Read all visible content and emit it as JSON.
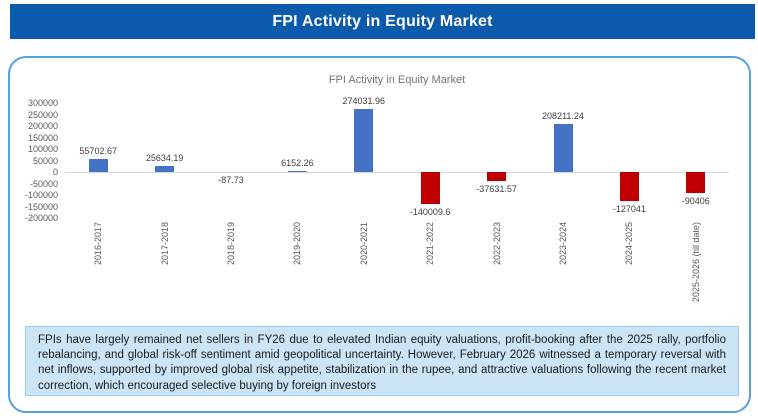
{
  "header": {
    "title": "FPI Activity in Equity Market"
  },
  "chart_data": {
    "type": "bar",
    "title": "FPI Activity in Equity Market",
    "categories": [
      "2016-2017",
      "2017-2018",
      "2018-2019",
      "2019-2020",
      "2020-2021",
      "2021-2022",
      "2022-2023",
      "2023-2024",
      "2024-2025",
      "2025-2026 (till date)"
    ],
    "values": [
      55702.67,
      25634.19,
      -87.73,
      6152.26,
      274031.96,
      -140009.6,
      -37631.57,
      208211.24,
      -127041,
      -90406
    ],
    "labels": [
      "55702.67",
      "25634.19",
      "-87.73",
      "6152.26",
      "274031.96",
      "-140009.6",
      "-37631.57",
      "208211.24",
      "-127041",
      "-90406"
    ],
    "ylim": [
      -200000,
      300000
    ],
    "yticks": [
      300000,
      250000,
      200000,
      150000,
      100000,
      50000,
      0,
      -50000,
      -100000,
      -150000,
      -200000
    ],
    "xlabel": "",
    "ylabel": "",
    "grid": false,
    "legend": false,
    "colors": {
      "positive": "#4472c4",
      "negative": "#c00000",
      "axis_line": "#d9d9d9",
      "tick_text": "#595959",
      "data_label": "#404040",
      "title_text": "#757575"
    }
  },
  "footer": {
    "text": "FPIs have largely remained net sellers in FY26 due to elevated Indian equity valuations, profit-booking after the 2025 rally, portfolio rebalancing, and global risk-off sentiment amid geopolitical uncertainty. However, February 2026 witnessed a temporary reversal with net inflows, supported by improved global risk appetite, stabilization in the rupee, and attractive valuations following the recent market correction, which encouraged selective buying by foreign investors"
  },
  "theme": {
    "header_bg": "#0b5aab",
    "header_text": "#ffffff",
    "frame_border": "#55a1dc",
    "footer_bg": "#cbe5f7",
    "footer_border": "#9ccbed"
  }
}
